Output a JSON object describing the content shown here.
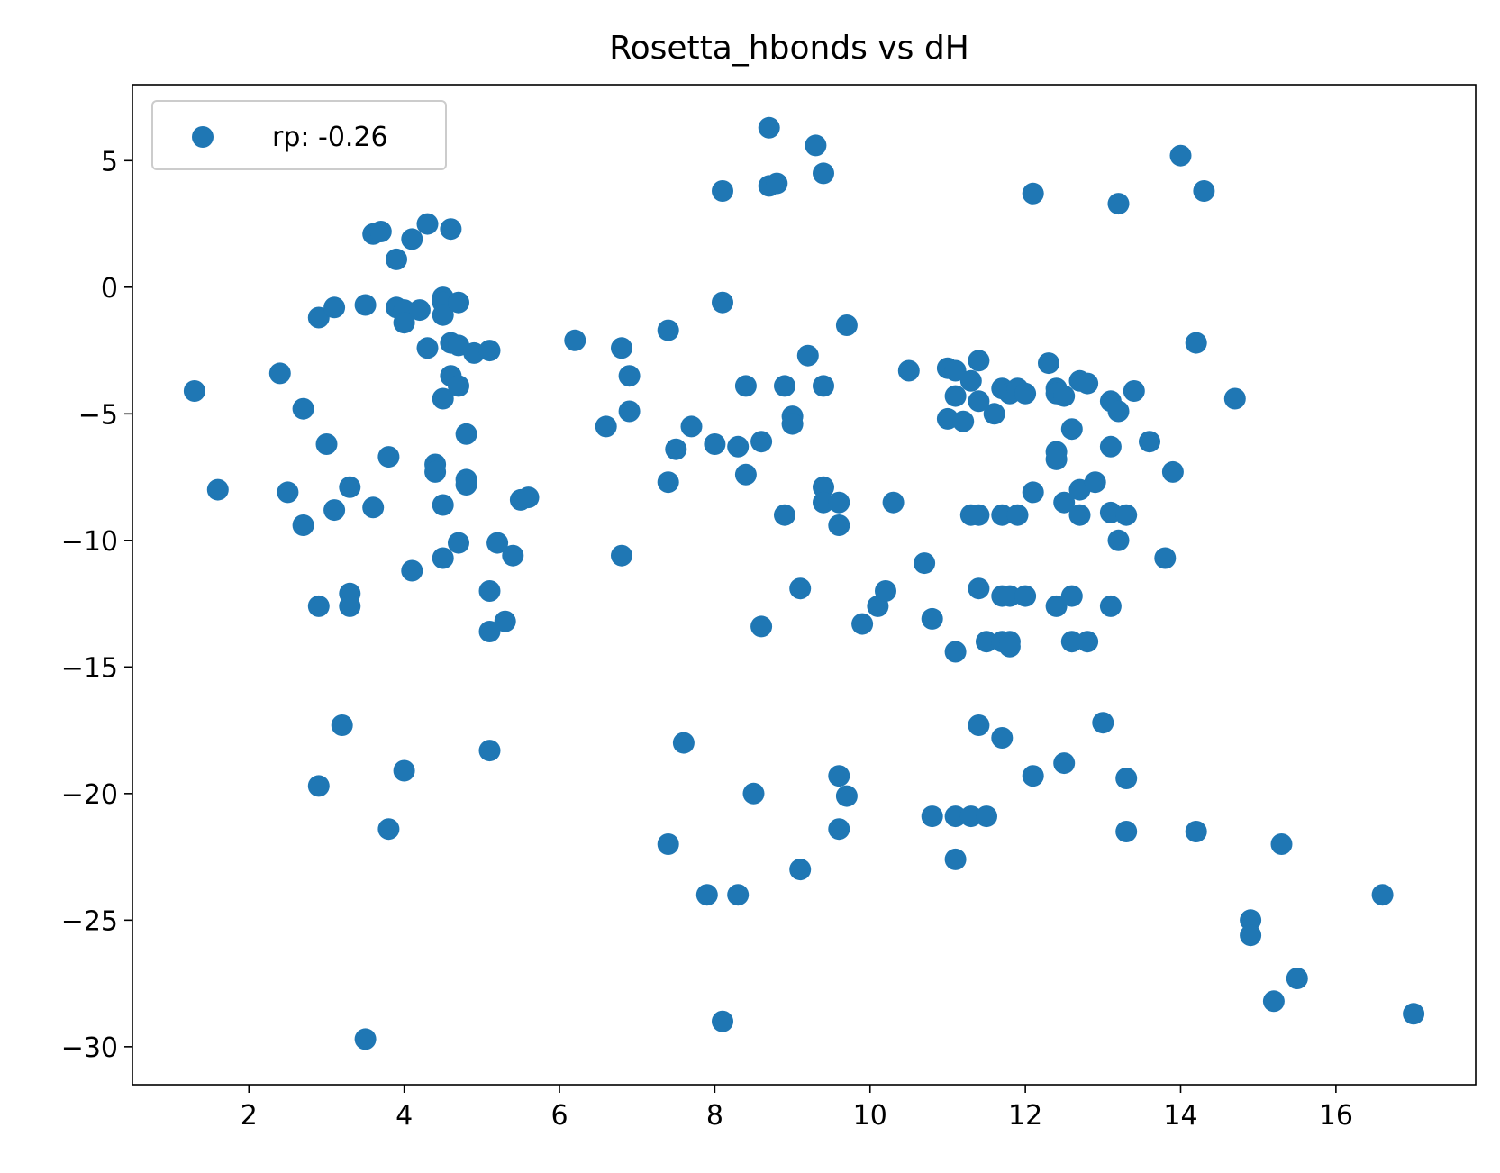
{
  "chart_data": {
    "type": "scatter",
    "title": "Rosetta_hbonds vs dH",
    "xlabel": "",
    "ylabel": "",
    "xlim": [
      0.5,
      17.8
    ],
    "ylim": [
      -31.5,
      8.0
    ],
    "xticks": [
      2,
      4,
      6,
      8,
      10,
      12,
      14,
      16
    ],
    "yticks": [
      5,
      0,
      -5,
      -10,
      -15,
      -20,
      -25,
      -30
    ],
    "xtick_labels": [
      "2",
      "4",
      "6",
      "8",
      "10",
      "12",
      "14",
      "16"
    ],
    "ytick_labels": [
      "5",
      "0",
      "−5",
      "−10",
      "−15",
      "−20",
      "−25",
      "−30"
    ],
    "grid": false,
    "legend": {
      "placement": "upper-left",
      "entries": [
        "rp: -0.26"
      ]
    },
    "color": "#1f77b4",
    "series": [
      {
        "name": "rp: -0.26",
        "points": [
          [
            1.3,
            -4.1
          ],
          [
            1.6,
            -8.0
          ],
          [
            2.4,
            -3.4
          ],
          [
            2.5,
            -8.1
          ],
          [
            2.7,
            -4.8
          ],
          [
            2.7,
            -9.4
          ],
          [
            2.9,
            -1.2
          ],
          [
            2.9,
            -12.6
          ],
          [
            2.9,
            -19.7
          ],
          [
            3.0,
            -6.2
          ],
          [
            3.1,
            -0.8
          ],
          [
            3.1,
            -8.8
          ],
          [
            3.2,
            -17.3
          ],
          [
            3.3,
            -7.9
          ],
          [
            3.3,
            -12.1
          ],
          [
            3.3,
            -12.6
          ],
          [
            3.5,
            -0.7
          ],
          [
            3.5,
            -29.7
          ],
          [
            3.6,
            2.1
          ],
          [
            3.6,
            -8.7
          ],
          [
            3.7,
            2.2
          ],
          [
            3.8,
            -6.7
          ],
          [
            3.8,
            -21.4
          ],
          [
            3.9,
            1.1
          ],
          [
            3.9,
            -0.8
          ],
          [
            4.0,
            -0.9
          ],
          [
            4.0,
            -1.4
          ],
          [
            4.0,
            -19.1
          ],
          [
            4.1,
            1.9
          ],
          [
            4.1,
            -11.2
          ],
          [
            4.2,
            -0.9
          ],
          [
            4.3,
            2.5
          ],
          [
            4.3,
            -2.4
          ],
          [
            4.4,
            -7.0
          ],
          [
            4.4,
            -7.3
          ],
          [
            4.5,
            -0.4
          ],
          [
            4.5,
            -0.6
          ],
          [
            4.5,
            -1.1
          ],
          [
            4.5,
            -4.4
          ],
          [
            4.5,
            -8.6
          ],
          [
            4.5,
            -10.7
          ],
          [
            4.6,
            2.3
          ],
          [
            4.6,
            -2.2
          ],
          [
            4.6,
            -3.5
          ],
          [
            4.7,
            -0.6
          ],
          [
            4.7,
            -2.3
          ],
          [
            4.7,
            -3.9
          ],
          [
            4.7,
            -10.1
          ],
          [
            4.8,
            -5.8
          ],
          [
            4.8,
            -7.6
          ],
          [
            4.8,
            -7.8
          ],
          [
            4.9,
            -2.6
          ],
          [
            5.1,
            -2.5
          ],
          [
            5.1,
            -12.0
          ],
          [
            5.1,
            -13.6
          ],
          [
            5.1,
            -18.3
          ],
          [
            5.2,
            -10.1
          ],
          [
            5.3,
            -13.2
          ],
          [
            5.4,
            -10.6
          ],
          [
            5.5,
            -8.4
          ],
          [
            5.6,
            -8.3
          ],
          [
            6.2,
            -2.1
          ],
          [
            6.6,
            -5.5
          ],
          [
            6.8,
            -2.4
          ],
          [
            6.8,
            -10.6
          ],
          [
            6.9,
            -3.5
          ],
          [
            6.9,
            -4.9
          ],
          [
            7.4,
            -1.7
          ],
          [
            7.4,
            -7.7
          ],
          [
            7.4,
            -22.0
          ],
          [
            7.5,
            -6.4
          ],
          [
            7.6,
            -18.0
          ],
          [
            7.7,
            -5.5
          ],
          [
            7.9,
            -24.0
          ],
          [
            8.0,
            -6.2
          ],
          [
            8.1,
            3.8
          ],
          [
            8.1,
            -0.6
          ],
          [
            8.1,
            -29.0
          ],
          [
            8.3,
            -6.3
          ],
          [
            8.3,
            -24.0
          ],
          [
            8.4,
            -3.9
          ],
          [
            8.4,
            -7.4
          ],
          [
            8.5,
            -20.0
          ],
          [
            8.6,
            -6.1
          ],
          [
            8.6,
            -13.4
          ],
          [
            8.7,
            6.3
          ],
          [
            8.7,
            4.0
          ],
          [
            8.8,
            4.1
          ],
          [
            8.9,
            -3.9
          ],
          [
            8.9,
            -9.0
          ],
          [
            9.0,
            -5.1
          ],
          [
            9.0,
            -5.4
          ],
          [
            9.1,
            -11.9
          ],
          [
            9.1,
            -23.0
          ],
          [
            9.2,
            -2.7
          ],
          [
            9.3,
            5.6
          ],
          [
            9.4,
            4.5
          ],
          [
            9.4,
            -3.9
          ],
          [
            9.4,
            -7.9
          ],
          [
            9.4,
            -8.5
          ],
          [
            9.6,
            -8.5
          ],
          [
            9.6,
            -9.4
          ],
          [
            9.6,
            -19.3
          ],
          [
            9.6,
            -21.4
          ],
          [
            9.7,
            -1.5
          ],
          [
            9.7,
            -20.1
          ],
          [
            9.9,
            -13.3
          ],
          [
            10.1,
            -12.6
          ],
          [
            10.2,
            -12.0
          ],
          [
            10.3,
            -8.5
          ],
          [
            10.5,
            -3.3
          ],
          [
            10.7,
            -10.9
          ],
          [
            10.8,
            -13.1
          ],
          [
            10.8,
            -20.9
          ],
          [
            11.0,
            -3.2
          ],
          [
            11.0,
            -5.2
          ],
          [
            11.1,
            -3.3
          ],
          [
            11.1,
            -4.3
          ],
          [
            11.1,
            -14.4
          ],
          [
            11.1,
            -20.9
          ],
          [
            11.1,
            -22.6
          ],
          [
            11.2,
            -5.3
          ],
          [
            11.3,
            -3.7
          ],
          [
            11.3,
            -9.0
          ],
          [
            11.3,
            -20.9
          ],
          [
            11.4,
            -2.9
          ],
          [
            11.4,
            -4.5
          ],
          [
            11.4,
            -9.0
          ],
          [
            11.4,
            -11.9
          ],
          [
            11.4,
            -17.3
          ],
          [
            11.5,
            -14.0
          ],
          [
            11.5,
            -20.9
          ],
          [
            11.6,
            -5.0
          ],
          [
            11.7,
            -4.0
          ],
          [
            11.7,
            -9.0
          ],
          [
            11.7,
            -12.2
          ],
          [
            11.7,
            -14.0
          ],
          [
            11.7,
            -17.8
          ],
          [
            11.8,
            -4.2
          ],
          [
            11.8,
            -12.2
          ],
          [
            11.8,
            -14.0
          ],
          [
            11.8,
            -14.2
          ],
          [
            11.9,
            -4.0
          ],
          [
            11.9,
            -9.0
          ],
          [
            12.0,
            -4.2
          ],
          [
            12.0,
            -12.2
          ],
          [
            12.1,
            3.7
          ],
          [
            12.1,
            -8.1
          ],
          [
            12.1,
            -19.3
          ],
          [
            12.3,
            -3.0
          ],
          [
            12.4,
            -4.0
          ],
          [
            12.4,
            -4.2
          ],
          [
            12.4,
            -6.5
          ],
          [
            12.4,
            -6.8
          ],
          [
            12.4,
            -12.6
          ],
          [
            12.5,
            -4.3
          ],
          [
            12.5,
            -8.5
          ],
          [
            12.5,
            -18.8
          ],
          [
            12.6,
            -5.6
          ],
          [
            12.6,
            -12.2
          ],
          [
            12.6,
            -14.0
          ],
          [
            12.7,
            -3.7
          ],
          [
            12.7,
            -8.0
          ],
          [
            12.7,
            -9.0
          ],
          [
            12.8,
            -3.8
          ],
          [
            12.8,
            -14.0
          ],
          [
            12.9,
            -7.7
          ],
          [
            13.0,
            -17.2
          ],
          [
            13.1,
            -4.5
          ],
          [
            13.1,
            -6.3
          ],
          [
            13.1,
            -8.9
          ],
          [
            13.1,
            -12.6
          ],
          [
            13.2,
            3.3
          ],
          [
            13.2,
            -4.9
          ],
          [
            13.2,
            -10.0
          ],
          [
            13.3,
            -9.0
          ],
          [
            13.3,
            -19.4
          ],
          [
            13.3,
            -21.5
          ],
          [
            13.4,
            -4.1
          ],
          [
            13.6,
            -6.1
          ],
          [
            13.8,
            -10.7
          ],
          [
            13.9,
            -7.3
          ],
          [
            14.0,
            5.2
          ],
          [
            14.2,
            -2.2
          ],
          [
            14.2,
            -21.5
          ],
          [
            14.3,
            3.8
          ],
          [
            14.7,
            -4.4
          ],
          [
            14.9,
            -25.0
          ],
          [
            14.9,
            -25.6
          ],
          [
            15.2,
            -28.2
          ],
          [
            15.3,
            -22.0
          ],
          [
            15.5,
            -27.3
          ],
          [
            16.6,
            -24.0
          ],
          [
            17.0,
            -28.7
          ]
        ]
      }
    ]
  }
}
